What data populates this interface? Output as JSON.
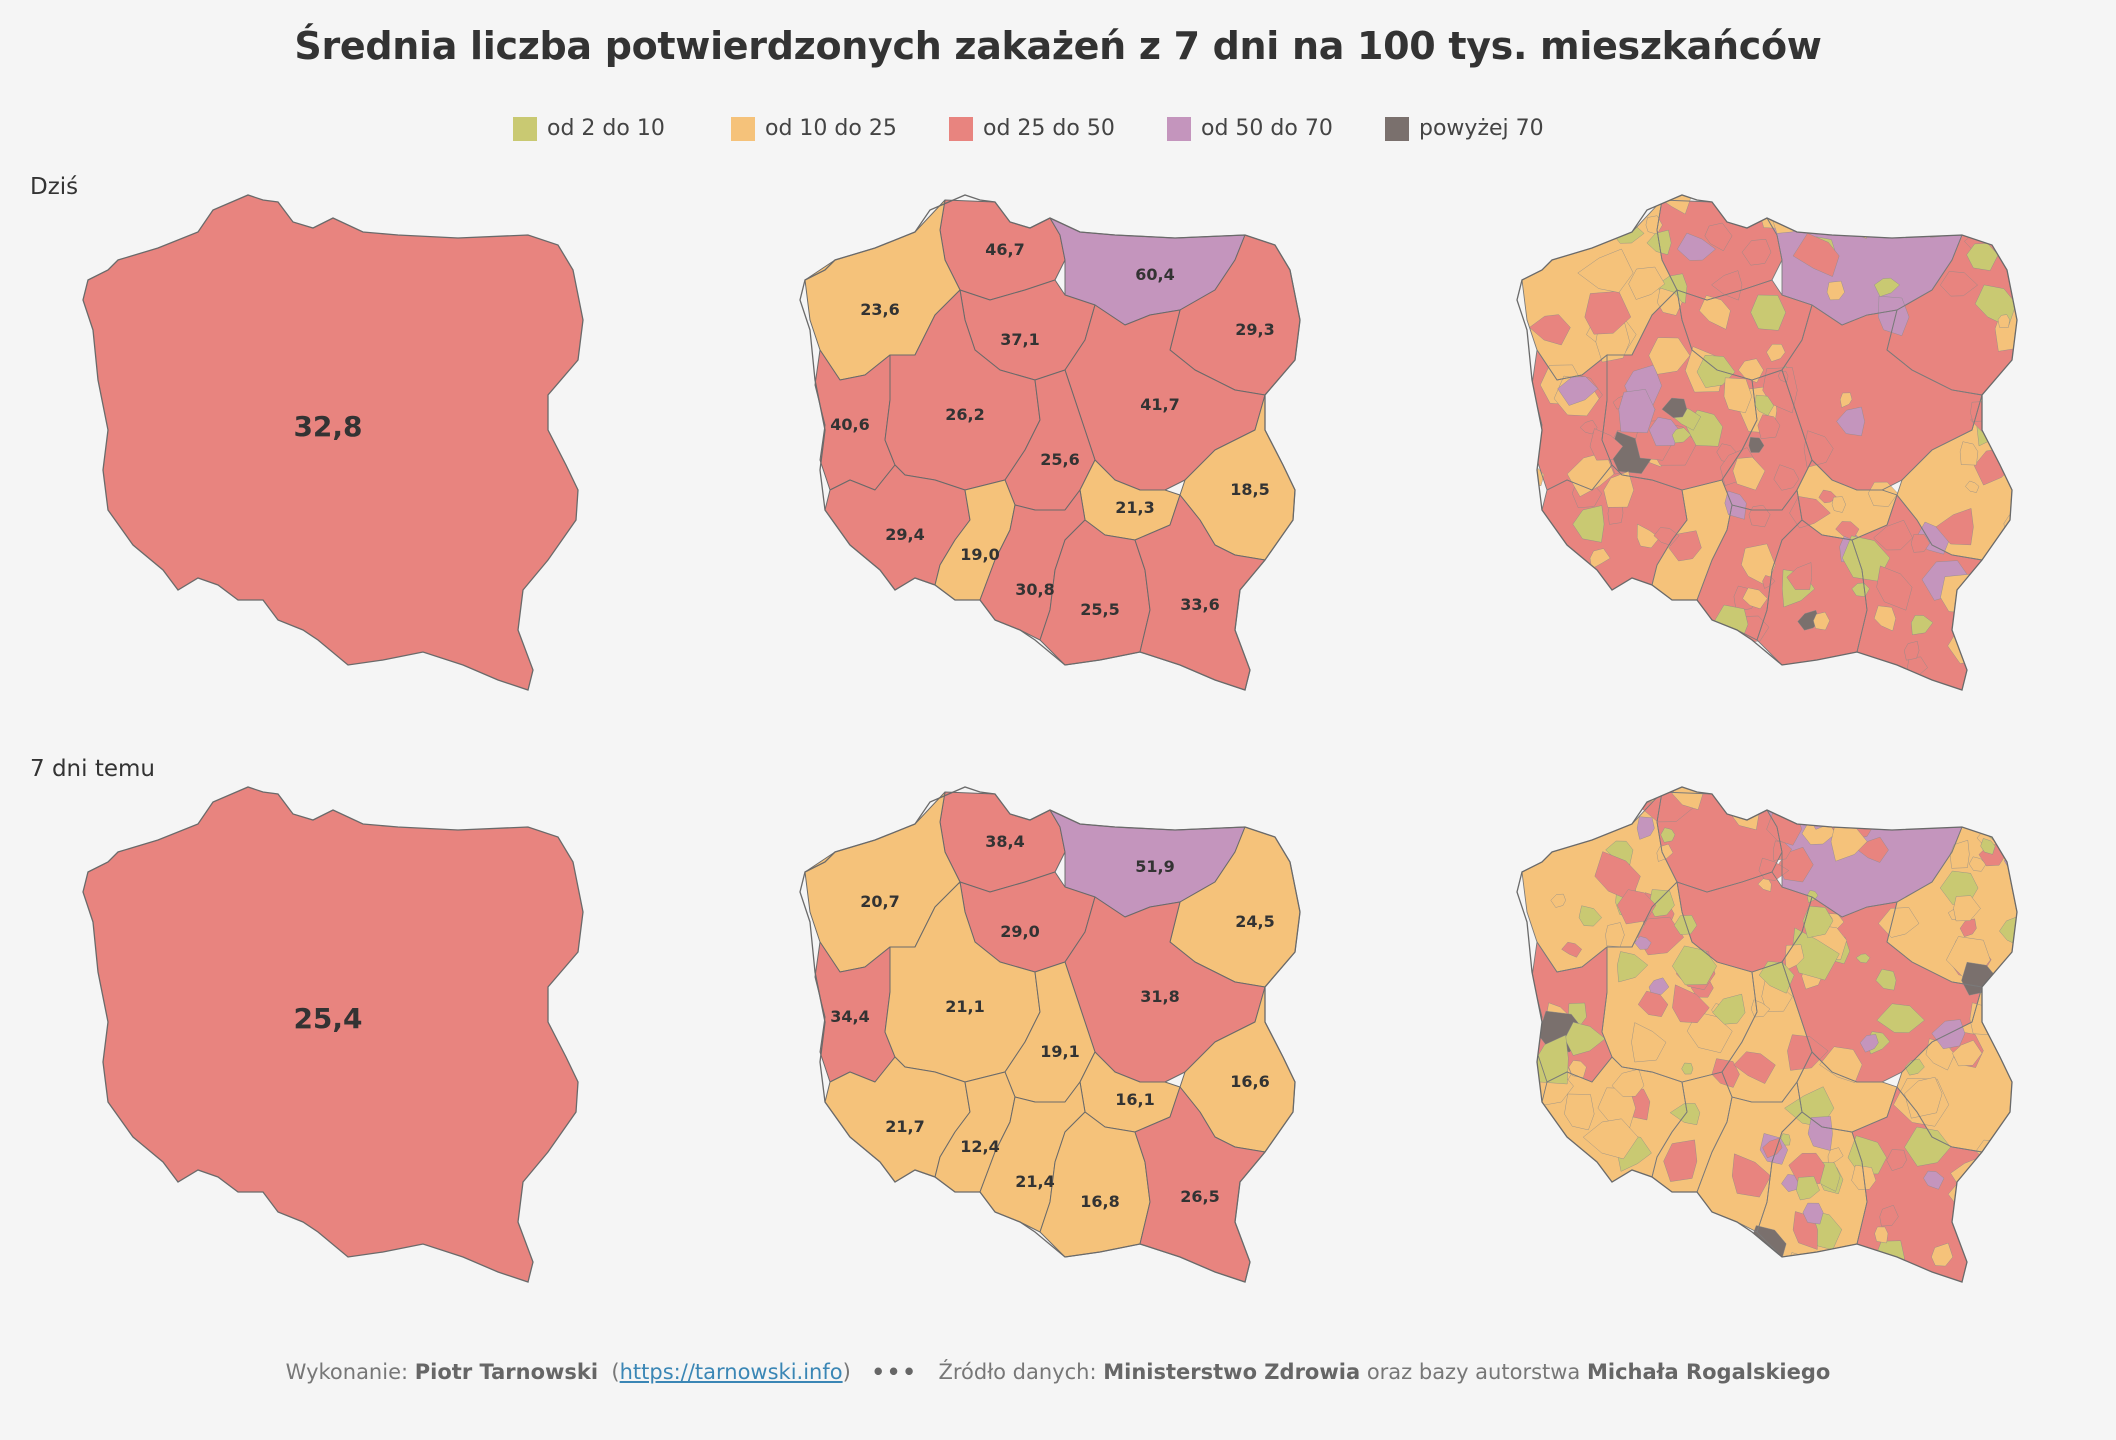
{
  "title": "Średnia liczba potwierdzonych zakażeń z 7 dni na 100 tys. mieszkańców",
  "legend": [
    {
      "label": "od 2 do 10",
      "color": "#c9c972"
    },
    {
      "label": "od 10 do 25",
      "color": "#f5c27a"
    },
    {
      "label": "od 25 do 50",
      "color": "#e8847f"
    },
    {
      "label": "od 50 do 70",
      "color": "#c495bd"
    },
    {
      "label": "powyżej 70",
      "color": "#7a706d"
    }
  ],
  "rows": [
    {
      "label": "Dziś",
      "national": "32,8",
      "voivodeships": {
        "pomorskie": "46,7",
        "zachodniopomorskie": "23,6",
        "warminsko_mazurskie": "60,4",
        "podlaskie": "29,3",
        "kujawsko_pomorskie": "37,1",
        "lubuskie": "40,6",
        "wielkopolskie": "26,2",
        "mazowieckie": "41,7",
        "lodzkie": "25,6",
        "lubelskie": "18,5",
        "dolnoslaskie": "29,4",
        "opolskie": "19,0",
        "swietokrzyskie": "21,3",
        "slaskie": "30,8",
        "malopolskie": "25,5",
        "podkarpackie": "33,6"
      }
    },
    {
      "label": "7 dni temu",
      "national": "25,4",
      "voivodeships": {
        "pomorskie": "38,4",
        "zachodniopomorskie": "20,7",
        "warminsko_mazurskie": "51,9",
        "podlaskie": "24,5",
        "kujawsko_pomorskie": "29,0",
        "lubuskie": "34,4",
        "wielkopolskie": "21,1",
        "mazowieckie": "31,8",
        "lodzkie": "19,1",
        "lubelskie": "16,6",
        "dolnoslaskie": "21,7",
        "opolskie": "12,4",
        "swietokrzyskie": "16,1",
        "slaskie": "21,4",
        "malopolskie": "16,8",
        "podkarpackie": "26,5"
      }
    }
  ],
  "footer": {
    "made_by_label": "Wykonanie:",
    "author": "Piotr Tarnowski",
    "link": "https://tarnowski.info",
    "separator": "•••",
    "source_label": "Źródło danych:",
    "source": "Ministerstwo Zdrowia",
    "source_mid": "oraz bazy autorstwa",
    "source_author": "Michała Rogalskiego"
  }
}
